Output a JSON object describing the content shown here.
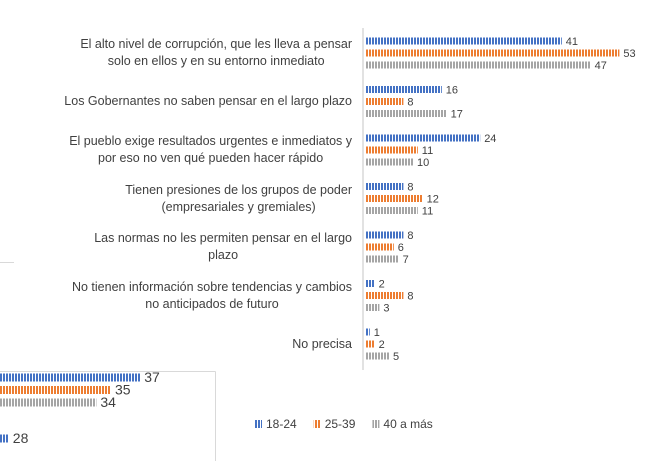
{
  "chart_data": [
    {
      "type": "bar",
      "orientation": "horizontal",
      "legend": "bottom",
      "categories": [
        "El alto nivel de corrupción, que les lleva a pensar\nsolo en ellos y en su entorno inmediato",
        "Los Gobernantes no saben pensar en el largo plazo",
        "El pueblo exige resultados urgentes e inmediatos y\npor eso no ven qué pueden hacer rápido",
        "Tienen presiones de los grupos de poder\n(empresariales y gremiales)",
        "Las normas no les permiten pensar en el largo\nplazo",
        "No tienen información sobre tendencias y cambios\nno anticipados de futuro",
        "No precisa"
      ],
      "series": [
        {
          "name": "18-24",
          "color": "#4472c4",
          "values": [
            41,
            16,
            24,
            8,
            8,
            2,
            1
          ]
        },
        {
          "name": "25-39",
          "color": "#ed7d31",
          "values": [
            53,
            8,
            11,
            12,
            6,
            8,
            2
          ]
        },
        {
          "name": "40 a más",
          "color": "#a5a5a5",
          "values": [
            47,
            17,
            10,
            11,
            7,
            3,
            5
          ]
        }
      ]
    },
    {
      "type": "bar",
      "orientation": "horizontal",
      "categories": [
        null,
        null
      ],
      "series": [
        {
          "color": "#4472c4",
          "values": [
            37,
            28
          ]
        },
        {
          "color": "#ed7d31",
          "values": [
            35,
            null
          ]
        },
        {
          "color": "#a5a5a5",
          "values": [
            34,
            null
          ]
        }
      ]
    }
  ]
}
